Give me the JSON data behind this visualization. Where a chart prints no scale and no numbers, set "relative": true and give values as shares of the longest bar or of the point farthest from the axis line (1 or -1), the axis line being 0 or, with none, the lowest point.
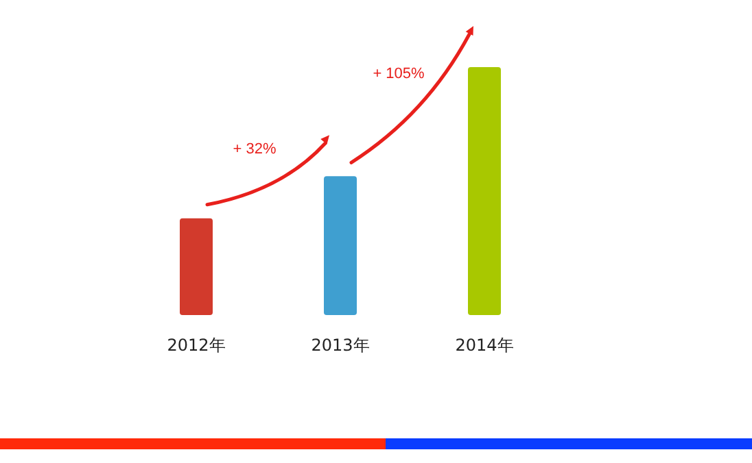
{
  "chart_data": {
    "type": "bar",
    "relative": true,
    "categories": [
      "2012年",
      "2013年",
      "2014年"
    ],
    "values": [
      0.39,
      0.56,
      1
    ],
    "colors": [
      "#d23a2c",
      "#3f9fd0",
      "#a8c800"
    ],
    "annotations": [
      "+ 32%",
      "+ 105%"
    ]
  }
}
